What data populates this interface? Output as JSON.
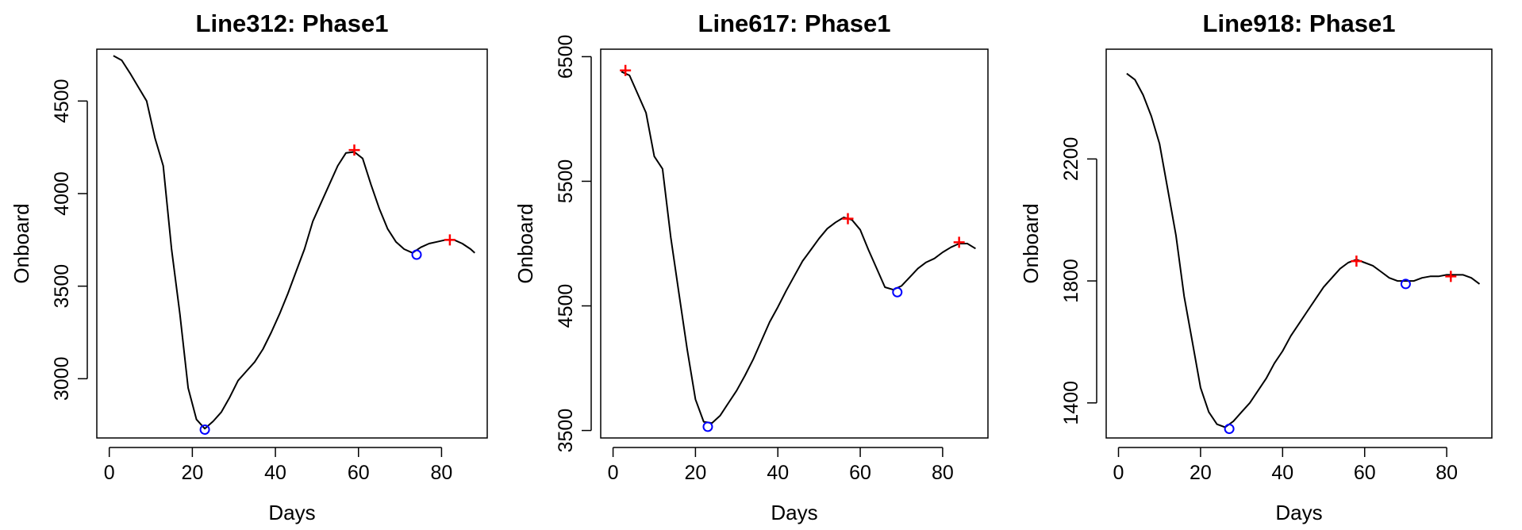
{
  "chart_data": [
    {
      "type": "line",
      "title": "Line312: Phase1",
      "xlabel": "Days",
      "ylabel": "Onboard",
      "xlim": [
        -3,
        91
      ],
      "ylim": [
        2680,
        4780
      ],
      "xticks": [
        0,
        20,
        40,
        60,
        80
      ],
      "yticks": [
        3000,
        3500,
        4000,
        4500
      ],
      "series": [
        {
          "name": "onboard",
          "color": "#000000",
          "x": [
            1,
            3,
            5,
            7,
            9,
            11,
            13,
            15,
            17,
            19,
            21,
            23,
            25,
            27,
            29,
            31,
            33,
            35,
            37,
            39,
            41,
            43,
            45,
            47,
            49,
            51,
            53,
            55,
            57,
            59,
            61,
            63,
            65,
            67,
            69,
            71,
            73,
            75,
            77,
            79,
            81,
            83,
            85,
            87,
            88
          ],
          "y": [
            4745,
            4720,
            4650,
            4575,
            4500,
            4300,
            4150,
            3700,
            3350,
            2950,
            2780,
            2730,
            2770,
            2820,
            2900,
            2990,
            3040,
            3090,
            3160,
            3250,
            3350,
            3460,
            3580,
            3700,
            3850,
            3950,
            4050,
            4150,
            4220,
            4225,
            4190,
            4050,
            3920,
            3810,
            3740,
            3700,
            3680,
            3710,
            3730,
            3740,
            3750,
            3750,
            3730,
            3700,
            3680
          ]
        }
      ],
      "maxima": {
        "x": [
          59,
          82
        ],
        "y": [
          4235,
          3750
        ],
        "marker": "+",
        "color": "#ff0000"
      },
      "minima": {
        "x": [
          23,
          74
        ],
        "y": [
          2725,
          3670
        ],
        "marker": "o",
        "color": "#0000ff"
      }
    },
    {
      "type": "line",
      "title": "Line617: Phase1",
      "xlabel": "Days",
      "ylabel": "Onboard",
      "xlim": [
        -3,
        91
      ],
      "ylim": [
        3440,
        6560
      ],
      "xticks": [
        0,
        20,
        40,
        60,
        80
      ],
      "yticks": [
        3500,
        4500,
        5500,
        6500
      ],
      "series": [
        {
          "name": "onboard",
          "color": "#000000",
          "x": [
            2,
            4,
            6,
            8,
            10,
            12,
            14,
            16,
            18,
            20,
            22,
            24,
            26,
            28,
            30,
            32,
            34,
            36,
            38,
            40,
            42,
            44,
            46,
            48,
            50,
            52,
            54,
            56,
            58,
            60,
            62,
            64,
            66,
            68,
            70,
            72,
            74,
            76,
            78,
            80,
            82,
            84,
            86,
            88
          ],
          "y": [
            6380,
            6350,
            6200,
            6050,
            5700,
            5600,
            5050,
            4600,
            4150,
            3750,
            3570,
            3560,
            3620,
            3720,
            3820,
            3940,
            4070,
            4220,
            4370,
            4490,
            4620,
            4740,
            4860,
            4950,
            5040,
            5120,
            5170,
            5210,
            5190,
            5110,
            4950,
            4800,
            4650,
            4630,
            4660,
            4730,
            4800,
            4850,
            4880,
            4930,
            4970,
            5000,
            5000,
            4960
          ]
        }
      ],
      "maxima": {
        "x": [
          3,
          57,
          84
        ],
        "y": [
          6390,
          5200,
          5010
        ],
        "marker": "+",
        "color": "#ff0000"
      },
      "minima": {
        "x": [
          23,
          69
        ],
        "y": [
          3530,
          4610
        ],
        "marker": "o",
        "color": "#0000ff"
      }
    },
    {
      "type": "line",
      "title": "Line918: Phase1",
      "xlabel": "Days",
      "ylabel": "Onboard",
      "xlim": [
        -3,
        91
      ],
      "ylim": [
        1285,
        2560
      ],
      "xticks": [
        0,
        20,
        40,
        60,
        80
      ],
      "yticks": [
        1400,
        1800,
        2200
      ],
      "series": [
        {
          "name": "onboard",
          "color": "#000000",
          "x": [
            2,
            4,
            6,
            8,
            10,
            12,
            14,
            16,
            18,
            20,
            22,
            24,
            26,
            28,
            30,
            32,
            34,
            36,
            38,
            40,
            42,
            44,
            46,
            48,
            50,
            52,
            54,
            56,
            58,
            60,
            62,
            64,
            66,
            68,
            70,
            72,
            74,
            76,
            78,
            80,
            82,
            84,
            86,
            88
          ],
          "y": [
            2480,
            2460,
            2410,
            2340,
            2250,
            2100,
            1950,
            1750,
            1600,
            1450,
            1370,
            1330,
            1320,
            1340,
            1370,
            1400,
            1440,
            1480,
            1530,
            1570,
            1620,
            1660,
            1700,
            1740,
            1780,
            1810,
            1840,
            1860,
            1870,
            1860,
            1850,
            1830,
            1810,
            1800,
            1800,
            1800,
            1810,
            1815,
            1815,
            1820,
            1820,
            1820,
            1810,
            1790
          ]
        }
      ],
      "maxima": {
        "x": [
          58,
          81
        ],
        "y": [
          1865,
          1815
        ],
        "marker": "+",
        "color": "#ff0000"
      },
      "minima": {
        "x": [
          27,
          70
        ],
        "y": [
          1315,
          1790
        ],
        "marker": "o",
        "color": "#0000ff"
      }
    }
  ]
}
